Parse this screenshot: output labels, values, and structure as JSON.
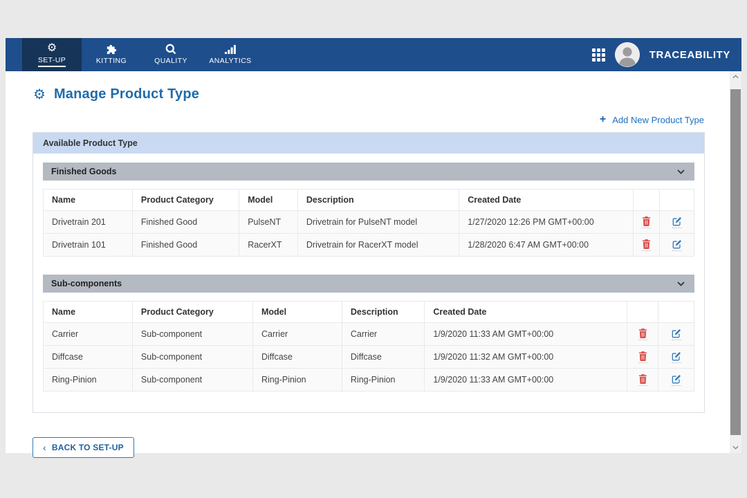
{
  "nav": {
    "tabs": [
      {
        "label": "SET-UP",
        "icon": "gear-icon",
        "active": true
      },
      {
        "label": "KITTING",
        "icon": "puzzle-icon",
        "active": false
      },
      {
        "label": "QUALITY",
        "icon": "magnifier-icon",
        "active": false
      },
      {
        "label": "ANALYTICS",
        "icon": "bar-chart-icon",
        "active": false
      }
    ],
    "brand": "TRACEABILITY"
  },
  "icons": {
    "gear": "⚙",
    "plus": "+",
    "back_chevron": "‹"
  },
  "page": {
    "title": "Manage Product Type",
    "add_link_label": "Add New Product Type",
    "panel_title": "Available Product Type",
    "back_button_label": "BACK TO SET-UP"
  },
  "table": {
    "columns": [
      "Name",
      "Product Category",
      "Model",
      "Description",
      "Created Date",
      "",
      ""
    ],
    "row_actions": [
      "delete",
      "edit"
    ]
  },
  "sections": [
    {
      "title": "Finished Goods",
      "rows": [
        {
          "name": "Drivetrain 201",
          "product_category": "Finished Good",
          "model": "PulseNT",
          "description": "Drivetrain for PulseNT model",
          "created_date": "1/27/2020 12:26 PM GMT+00:00"
        },
        {
          "name": "Drivetrain 101",
          "product_category": "Finished Good",
          "model": "RacerXT",
          "description": "Drivetrain for RacerXT model",
          "created_date": "1/28/2020 6:47 AM GMT+00:00"
        }
      ]
    },
    {
      "title": "Sub-components",
      "rows": [
        {
          "name": "Carrier",
          "product_category": "Sub-component",
          "model": "Carrier",
          "description": "Carrier",
          "created_date": "1/9/2020 11:33 AM GMT+00:00"
        },
        {
          "name": "Diffcase",
          "product_category": "Sub-component",
          "model": "Diffcase",
          "description": "Diffcase",
          "created_date": "1/9/2020 11:32 AM GMT+00:00"
        },
        {
          "name": "Ring-Pinion",
          "product_category": "Sub-component",
          "model": "Ring-Pinion",
          "description": "Ring-Pinion",
          "created_date": "1/9/2020 11:33 AM GMT+00:00"
        }
      ]
    }
  ],
  "colors": {
    "navbar": "#1e4e8c",
    "navbar_active_tab": "#163457",
    "title_blue": "#1f6cab",
    "link_blue": "#1d6fc0",
    "panel_header_bg": "#c9d9f2",
    "section_header_bg": "#b4bac1",
    "delete_red": "#d9534f",
    "edit_blue": "#337ab7"
  }
}
